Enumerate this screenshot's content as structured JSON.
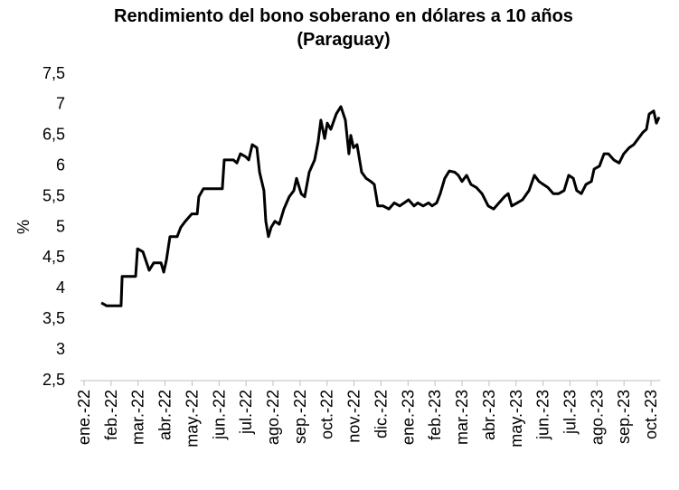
{
  "chart_data": {
    "type": "line",
    "title": "Rendimiento del bono soberano en dólares a 10 años",
    "subtitle": "(Paraguay)",
    "y_label": "%",
    "x": [
      0.64,
      0.84,
      1.37,
      1.41,
      1.91,
      1.98,
      2.18,
      2.41,
      2.58,
      2.85,
      2.95,
      3.05,
      3.18,
      3.45,
      3.58,
      3.75,
      3.99,
      4.19,
      4.25,
      4.42,
      5.12,
      5.19,
      5.53,
      5.66,
      5.79,
      5.99,
      6.1,
      6.23,
      6.4,
      6.5,
      6.66,
      6.73,
      6.83,
      6.93,
      7.07,
      7.23,
      7.4,
      7.6,
      7.77,
      7.87,
      8.04,
      8.17,
      8.34,
      8.54,
      8.67,
      8.77,
      8.91,
      9.01,
      9.14,
      9.34,
      9.51,
      9.68,
      9.81,
      9.88,
      9.98,
      10.11,
      10.28,
      10.45,
      10.62,
      10.75,
      10.88,
      11.08,
      11.29,
      11.49,
      11.69,
      11.86,
      12.02,
      12.22,
      12.36,
      12.56,
      12.76,
      12.89,
      13.06,
      13.19,
      13.36,
      13.53,
      13.73,
      13.86,
      14.0,
      14.17,
      14.33,
      14.53,
      14.74,
      14.97,
      15.17,
      15.37,
      15.57,
      15.71,
      15.84,
      16.04,
      16.24,
      16.48,
      16.68,
      16.85,
      17.01,
      17.18,
      17.38,
      17.58,
      17.78,
      17.95,
      18.12,
      18.25,
      18.42,
      18.59,
      18.79,
      18.89,
      19.09,
      19.26,
      19.42,
      19.62,
      19.82,
      19.99,
      20.19,
      20.36,
      20.53,
      20.7,
      20.83,
      20.93,
      21.1,
      21.2,
      21.3
    ],
    "series": [
      {
        "color": "#000000",
        "values": [
          3.77,
          3.72,
          3.72,
          4.2,
          4.2,
          4.65,
          4.6,
          4.3,
          4.42,
          4.42,
          4.27,
          4.47,
          4.85,
          4.85,
          5.0,
          5.1,
          5.22,
          5.22,
          5.5,
          5.63,
          5.63,
          6.1,
          6.1,
          6.05,
          6.2,
          6.15,
          6.1,
          6.35,
          6.3,
          5.9,
          5.6,
          5.1,
          4.85,
          5.0,
          5.1,
          5.05,
          5.3,
          5.5,
          5.6,
          5.8,
          5.55,
          5.5,
          5.9,
          6.1,
          6.4,
          6.75,
          6.45,
          6.7,
          6.6,
          6.85,
          6.97,
          6.75,
          6.2,
          6.5,
          6.3,
          6.35,
          5.9,
          5.8,
          5.75,
          5.7,
          5.35,
          5.35,
          5.3,
          5.4,
          5.35,
          5.4,
          5.45,
          5.35,
          5.4,
          5.35,
          5.4,
          5.35,
          5.4,
          5.55,
          5.8,
          5.92,
          5.9,
          5.85,
          5.75,
          5.85,
          5.7,
          5.65,
          5.55,
          5.35,
          5.3,
          5.4,
          5.5,
          5.55,
          5.35,
          5.4,
          5.45,
          5.6,
          5.85,
          5.75,
          5.7,
          5.65,
          5.55,
          5.55,
          5.6,
          5.85,
          5.8,
          5.6,
          5.55,
          5.7,
          5.75,
          5.95,
          6.0,
          6.2,
          6.2,
          6.1,
          6.05,
          6.2,
          6.3,
          6.35,
          6.45,
          6.55,
          6.6,
          6.85,
          6.9,
          6.7,
          6.8
        ]
      }
    ],
    "xlim": [
      0,
      21.35
    ],
    "xticks": [
      {
        "value": 0,
        "label": "ene.-22"
      },
      {
        "value": 1,
        "label": "feb.-22"
      },
      {
        "value": 2,
        "label": "mar.-22"
      },
      {
        "value": 3,
        "label": "abr.-22"
      },
      {
        "value": 4,
        "label": "may.-22"
      },
      {
        "value": 5,
        "label": "jun.-22"
      },
      {
        "value": 6,
        "label": "jul.-22"
      },
      {
        "value": 7,
        "label": "ago.-22"
      },
      {
        "value": 8,
        "label": "sep.-22"
      },
      {
        "value": 9,
        "label": "oct.-22"
      },
      {
        "value": 10,
        "label": "nov.-22"
      },
      {
        "value": 11,
        "label": "dic.-22"
      },
      {
        "value": 12,
        "label": "ene.-23"
      },
      {
        "value": 13,
        "label": "feb.-23"
      },
      {
        "value": 14,
        "label": "mar.-23"
      },
      {
        "value": 15,
        "label": "abr.-23"
      },
      {
        "value": 16,
        "label": "may.-23"
      },
      {
        "value": 17,
        "label": "jun.-23"
      },
      {
        "value": 18,
        "label": "jul.-23"
      },
      {
        "value": 19,
        "label": "ago.-23"
      },
      {
        "value": 20,
        "label": "sep.-23"
      },
      {
        "value": 21,
        "label": "oct.-23"
      }
    ],
    "ylim": [
      2.5,
      7.5
    ],
    "yticks": [
      {
        "value": 2.5,
        "label": "2,5"
      },
      3,
      {
        "value": 3.5,
        "label": "3,5"
      },
      4,
      {
        "value": 4.5,
        "label": "4,5"
      },
      5,
      {
        "value": 5.5,
        "label": "5,5"
      },
      6,
      {
        "value": 6.5,
        "label": "6,5"
      },
      7,
      {
        "value": 7.5,
        "label": "7,5"
      }
    ]
  }
}
